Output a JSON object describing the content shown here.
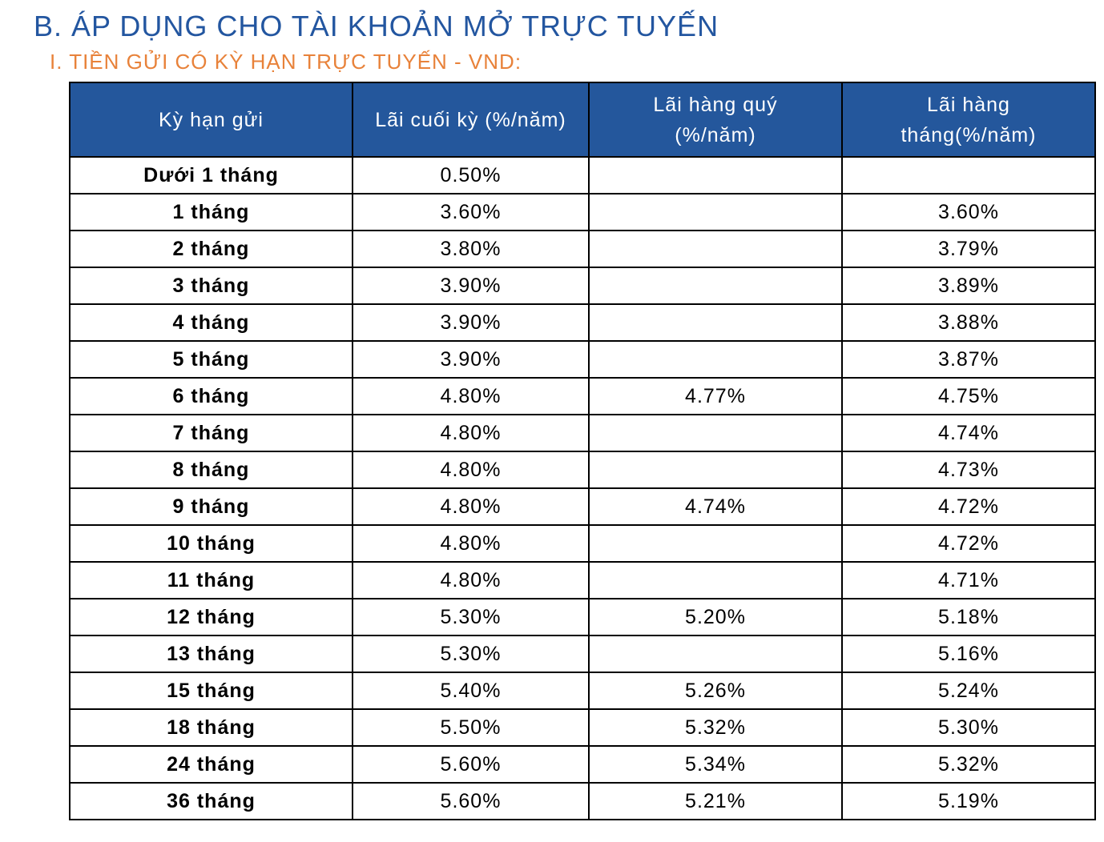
{
  "heading": "B. ÁP DỤNG CHO TÀI KHOẢN MỞ TRỰC TUYẾN",
  "subheading": "I. TIỀN GỬI CÓ KỲ HẠN TRỰC TUYẾN - VND:",
  "table": {
    "headers": [
      "Kỳ hạn gửi",
      "Lãi cuối kỳ (%/năm)",
      "Lãi hàng quý (%/năm)",
      "Lãi hàng tháng(%/năm)"
    ],
    "rows": [
      [
        "Dưới 1 tháng",
        "0.50%",
        "",
        ""
      ],
      [
        "1 tháng",
        "3.60%",
        "",
        "3.60%"
      ],
      [
        "2 tháng",
        "3.80%",
        "",
        "3.79%"
      ],
      [
        "3 tháng",
        "3.90%",
        "",
        "3.89%"
      ],
      [
        "4 tháng",
        "3.90%",
        "",
        "3.88%"
      ],
      [
        "5 tháng",
        "3.90%",
        "",
        "3.87%"
      ],
      [
        "6 tháng",
        "4.80%",
        "4.77%",
        "4.75%"
      ],
      [
        "7 tháng",
        "4.80%",
        "",
        "4.74%"
      ],
      [
        "8 tháng",
        "4.80%",
        "",
        "4.73%"
      ],
      [
        "9 tháng",
        "4.80%",
        "4.74%",
        "4.72%"
      ],
      [
        "10 tháng",
        "4.80%",
        "",
        "4.72%"
      ],
      [
        "11 tháng",
        "4.80%",
        "",
        "4.71%"
      ],
      [
        "12 tháng",
        "5.30%",
        "5.20%",
        "5.18%"
      ],
      [
        "13 tháng",
        "5.30%",
        "",
        "5.16%"
      ],
      [
        "15 tháng",
        "5.40%",
        "5.26%",
        "5.24%"
      ],
      [
        "18 tháng",
        "5.50%",
        "5.32%",
        "5.30%"
      ],
      [
        "24 tháng",
        "5.60%",
        "5.34%",
        "5.32%"
      ],
      [
        "36 tháng",
        "5.60%",
        "5.21%",
        "5.19%"
      ]
    ]
  },
  "colors": {
    "heading": "#2356a0",
    "subheading": "#e8823a",
    "header_bg": "#24579c"
  }
}
